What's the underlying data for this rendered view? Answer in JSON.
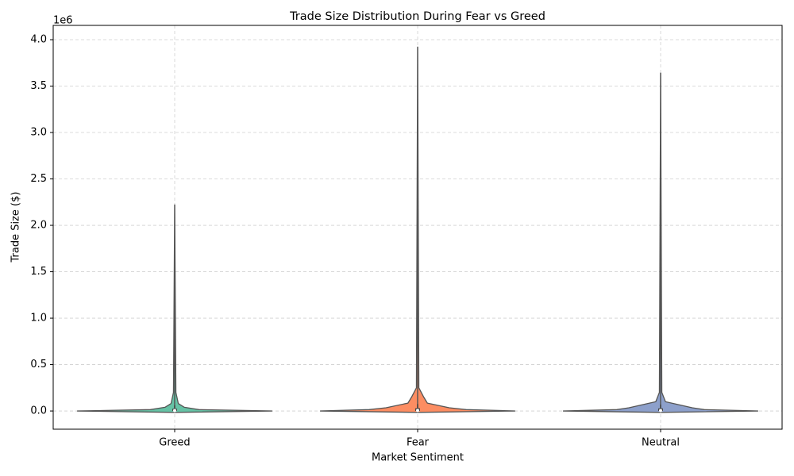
{
  "chart_data": {
    "type": "violin",
    "title": "Trade Size Distribution During Fear vs Greed",
    "x_label": "Market Sentiment",
    "y_label": "Trade Size ($)",
    "offset_label": "1e6",
    "grid": true,
    "ylim": [
      -196000,
      4154000
    ],
    "yticks": [
      {
        "value": 0,
        "label": "0.0"
      },
      {
        "value": 500000,
        "label": "0.5"
      },
      {
        "value": 1000000,
        "label": "1.0"
      },
      {
        "value": 1500000,
        "label": "1.5"
      },
      {
        "value": 2000000,
        "label": "2.0"
      },
      {
        "value": 2500000,
        "label": "2.5"
      },
      {
        "value": 3000000,
        "label": "3.0"
      },
      {
        "value": 3500000,
        "label": "3.5"
      },
      {
        "value": 4000000,
        "label": "4.0"
      }
    ],
    "violins": [
      {
        "name": "Greed",
        "color": "#66c2a5",
        "y": [
          -15000,
          0,
          15000,
          40000,
          80000,
          200000,
          2220000
        ],
        "width": [
          0,
          0.4,
          0.1,
          0.04,
          0.015,
          0.005,
          0
        ],
        "q1": 1000,
        "median": 5000,
        "q3": 25000,
        "whisker": 60000
      },
      {
        "name": "Fear",
        "color": "#fc8d62",
        "y": [
          -15000,
          0,
          15000,
          35000,
          85000,
          150000,
          250000,
          3920000
        ],
        "width": [
          0,
          0.4,
          0.2,
          0.13,
          0.04,
          0.025,
          0.005,
          0
        ],
        "q1": 1000,
        "median": 6000,
        "q3": 30000,
        "whisker": 75000
      },
      {
        "name": "Neutral",
        "color": "#8da0cb",
        "y": [
          -15000,
          0,
          15000,
          35000,
          100000,
          200000,
          3640000
        ],
        "width": [
          0,
          0.4,
          0.18,
          0.13,
          0.02,
          0.005,
          0
        ],
        "q1": 1000,
        "median": 5000,
        "q3": 28000,
        "whisker": 70000
      }
    ]
  }
}
